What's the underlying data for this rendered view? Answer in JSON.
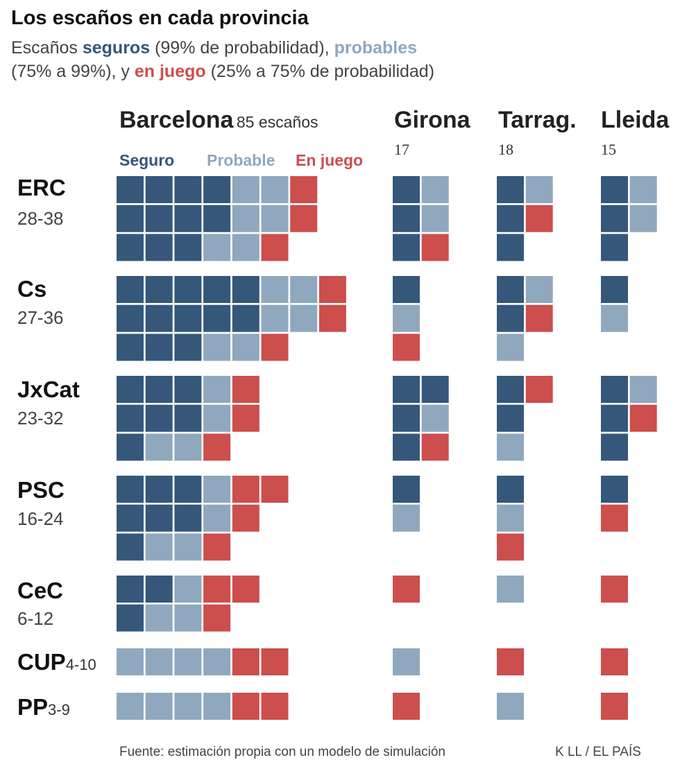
{
  "title": "Los escaños en cada provincia",
  "subtitle": {
    "p1": "Escaños ",
    "seguros": "seguros",
    "p2": " (99% de probabilidad), ",
    "probables": "probables",
    "p3": "(75% a 99%), y ",
    "en_juego": "en juego",
    "p4": " (25% a 75% de probabilidad)"
  },
  "legend": {
    "seguro": "Seguro",
    "probable": "Probable",
    "en_juego": "En juego"
  },
  "colors": {
    "seguro": "#35577a",
    "probable": "#8fa8be",
    "en_juego": "#cc4e4d"
  },
  "source": "Fuente: estimación propia con un modelo de simulación",
  "credit": "K LL / EL PAÍS",
  "chart_data": {
    "type": "waffle",
    "title": "Los escaños en cada provincia",
    "provinces": [
      {
        "name": "Barcelona",
        "seats_label": "85 escaños",
        "seats": 85
      },
      {
        "name": "Girona",
        "seats_label": "17",
        "seats": 17
      },
      {
        "name": "Tarrag.",
        "seats_label": "18",
        "seats": 18
      },
      {
        "name": "Lleida",
        "seats_label": "15",
        "seats": 15
      }
    ],
    "categories": [
      "Seguro",
      "Probable",
      "En juego"
    ],
    "parties": [
      {
        "name": "ERC",
        "range": "28-38",
        "seats": {
          "Barcelona": [
            [
              1,
              1,
              1,
              1,
              2,
              2,
              3
            ],
            [
              1,
              1,
              1,
              1,
              2,
              2,
              3
            ],
            [
              1,
              1,
              1,
              2,
              2,
              3
            ]
          ],
          "Girona": [
            [
              1,
              2
            ],
            [
              1,
              2
            ],
            [
              1,
              3
            ]
          ],
          "Tarrag.": [
            [
              1,
              2
            ],
            [
              1,
              3
            ],
            [
              1
            ]
          ],
          "Lleida": [
            [
              1,
              2
            ],
            [
              1,
              2
            ],
            [
              1
            ]
          ]
        }
      },
      {
        "name": "Cs",
        "range": "27-36",
        "seats": {
          "Barcelona": [
            [
              1,
              1,
              1,
              1,
              1,
              2,
              2,
              3
            ],
            [
              1,
              1,
              1,
              1,
              1,
              2,
              2,
              3
            ],
            [
              1,
              1,
              1,
              2,
              2,
              3
            ]
          ],
          "Girona": [
            [
              1
            ],
            [
              2
            ],
            [
              3
            ]
          ],
          "Tarrag.": [
            [
              1,
              2
            ],
            [
              1,
              3
            ],
            [
              2
            ]
          ],
          "Lleida": [
            [
              1
            ],
            [
              2
            ]
          ]
        }
      },
      {
        "name": "JxCat",
        "range": "23-32",
        "seats": {
          "Barcelona": [
            [
              1,
              1,
              1,
              2,
              3
            ],
            [
              1,
              1,
              1,
              2,
              3
            ],
            [
              1,
              2,
              2,
              3
            ]
          ],
          "Girona": [
            [
              1,
              1
            ],
            [
              1,
              2
            ],
            [
              1,
              3
            ]
          ],
          "Tarrag.": [
            [
              1,
              3
            ],
            [
              1
            ],
            [
              2
            ]
          ],
          "Lleida": [
            [
              1,
              2
            ],
            [
              1,
              3
            ],
            [
              1
            ]
          ]
        }
      },
      {
        "name": "PSC",
        "range": "16-24",
        "seats": {
          "Barcelona": [
            [
              1,
              1,
              1,
              2,
              3,
              3
            ],
            [
              1,
              1,
              1,
              2,
              3
            ],
            [
              1,
              2,
              2,
              3
            ]
          ],
          "Girona": [
            [
              1
            ],
            [
              2
            ]
          ],
          "Tarrag.": [
            [
              1
            ],
            [
              2
            ],
            [
              3
            ]
          ],
          "Lleida": [
            [
              1
            ],
            [
              3
            ]
          ]
        }
      },
      {
        "name": "CeC",
        "range": "6-12",
        "seats": {
          "Barcelona": [
            [
              1,
              1,
              2,
              3,
              3
            ],
            [
              1,
              2,
              2,
              3
            ]
          ],
          "Girona": [
            [
              3
            ]
          ],
          "Tarrag.": [
            [
              2
            ]
          ],
          "Lleida": [
            [
              3
            ]
          ]
        }
      },
      {
        "name": "CUP",
        "range": "4-10",
        "inline": true,
        "seats": {
          "Barcelona": [
            [
              2,
              2,
              2,
              2,
              3,
              3
            ]
          ],
          "Girona": [
            [
              2
            ]
          ],
          "Tarrag.": [
            [
              3
            ]
          ],
          "Lleida": [
            [
              3
            ]
          ]
        }
      },
      {
        "name": "PP",
        "range": "3-9",
        "inline": true,
        "seats": {
          "Barcelona": [
            [
              2,
              2,
              2,
              2,
              3,
              3
            ]
          ],
          "Girona": [
            [
              3
            ]
          ],
          "Tarrag.": [
            [
              2
            ]
          ],
          "Lleida": [
            [
              3
            ]
          ]
        }
      }
    ]
  }
}
